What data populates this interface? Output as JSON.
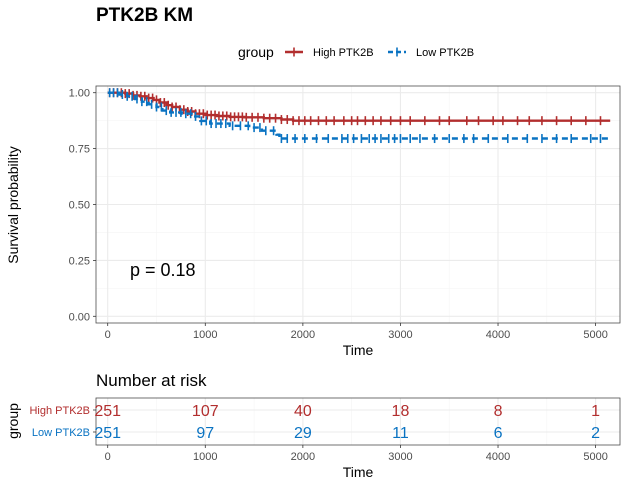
{
  "colors": {
    "high": "#b22e2e",
    "low": "#0a73c2",
    "grid_major": "#ebebeb",
    "grid_minor": "#f5f5f5",
    "panel_border": "#4d4d4d"
  },
  "chart_data": [
    {
      "type": "line",
      "title": "PTK2B KM",
      "xlabel": "Time",
      "ylabel": "Survival probability",
      "xlim": [
        -120,
        5250
      ],
      "ylim": [
        -0.03,
        1.03
      ],
      "x_ticks": [
        0,
        1000,
        2000,
        3000,
        4000,
        5000
      ],
      "y_ticks": [
        0,
        0.25,
        0.5,
        0.75,
        1.0
      ],
      "y_tick_labels": [
        "0.00",
        "0.25",
        "0.50",
        "0.75",
        "1.00"
      ],
      "legend": {
        "title": "group",
        "placement": "top"
      },
      "annotation": "p = 0.18",
      "grid": true,
      "series": [
        {
          "name": "High PTK2B",
          "color": "high",
          "dash": false,
          "steps": [
            [
              0,
              1.0
            ],
            [
              80,
              1.0
            ],
            [
              180,
              0.996
            ],
            [
              260,
              0.988
            ],
            [
              330,
              0.984
            ],
            [
              400,
              0.976
            ],
            [
              470,
              0.968
            ],
            [
              530,
              0.956
            ],
            [
              600,
              0.944
            ],
            [
              660,
              0.936
            ],
            [
              740,
              0.924
            ],
            [
              820,
              0.916
            ],
            [
              900,
              0.906
            ],
            [
              1000,
              0.9
            ],
            [
              1120,
              0.896
            ],
            [
              1250,
              0.892
            ],
            [
              1400,
              0.89
            ],
            [
              1600,
              0.886
            ],
            [
              1780,
              0.88
            ],
            [
              1900,
              0.875
            ],
            [
              5150,
              0.875
            ]
          ],
          "censor": [
            20,
            60,
            100,
            140,
            180,
            220,
            260,
            300,
            340,
            380,
            420,
            460,
            500,
            540,
            580,
            620,
            660,
            700,
            740,
            780,
            820,
            860,
            900,
            940,
            980,
            1020,
            1060,
            1100,
            1140,
            1180,
            1220,
            1260,
            1300,
            1340,
            1380,
            1420,
            1480,
            1540,
            1600,
            1660,
            1720,
            1780,
            1840,
            1900,
            1960,
            2020,
            2080,
            2160,
            2240,
            2320,
            2420,
            2500,
            2560,
            2640,
            2720,
            2800,
            2900,
            3000,
            3100,
            3250,
            3400,
            3500,
            3680,
            3800,
            3950,
            4050,
            4200,
            4320,
            4450,
            4600,
            4750,
            4900,
            5050
          ]
        },
        {
          "name": "Low PTK2B",
          "color": "low",
          "dash": true,
          "steps": [
            [
              0,
              1.0
            ],
            [
              120,
              0.992
            ],
            [
              200,
              0.984
            ],
            [
              280,
              0.972
            ],
            [
              350,
              0.96
            ],
            [
              420,
              0.948
            ],
            [
              500,
              0.936
            ],
            [
              560,
              0.92
            ],
            [
              640,
              0.912
            ],
            [
              760,
              0.906
            ],
            [
              860,
              0.894
            ],
            [
              950,
              0.874
            ],
            [
              1050,
              0.862
            ],
            [
              1250,
              0.852
            ],
            [
              1450,
              0.844
            ],
            [
              1580,
              0.83
            ],
            [
              1730,
              0.812
            ],
            [
              1760,
              0.795
            ],
            [
              5150,
              0.795
            ]
          ],
          "censor": [
            20,
            60,
            100,
            150,
            200,
            250,
            300,
            350,
            400,
            450,
            500,
            550,
            600,
            650,
            700,
            750,
            800,
            850,
            900,
            960,
            1010,
            1060,
            1110,
            1160,
            1210,
            1280,
            1360,
            1440,
            1500,
            1560,
            1620,
            1700,
            1780,
            1840,
            1920,
            2020,
            2140,
            2260,
            2400,
            2460,
            2520,
            2600,
            2680,
            2740,
            2800,
            2880,
            2940,
            3000,
            3100,
            3200,
            3350,
            3500,
            3650,
            3750,
            3900,
            4100,
            4300,
            4450,
            4600,
            4750,
            4950,
            5050
          ]
        }
      ]
    },
    {
      "type": "table",
      "title": "Number at risk",
      "xlabel": "Time",
      "ylabel": "group",
      "x_ticks": [
        0,
        1000,
        2000,
        3000,
        4000,
        5000
      ],
      "rows": [
        {
          "name": "High PTK2B",
          "color": "high",
          "values": [
            251,
            107,
            40,
            18,
            8,
            1
          ]
        },
        {
          "name": "Low PTK2B",
          "color": "low",
          "values": [
            251,
            97,
            29,
            11,
            6,
            2
          ]
        }
      ]
    }
  ]
}
